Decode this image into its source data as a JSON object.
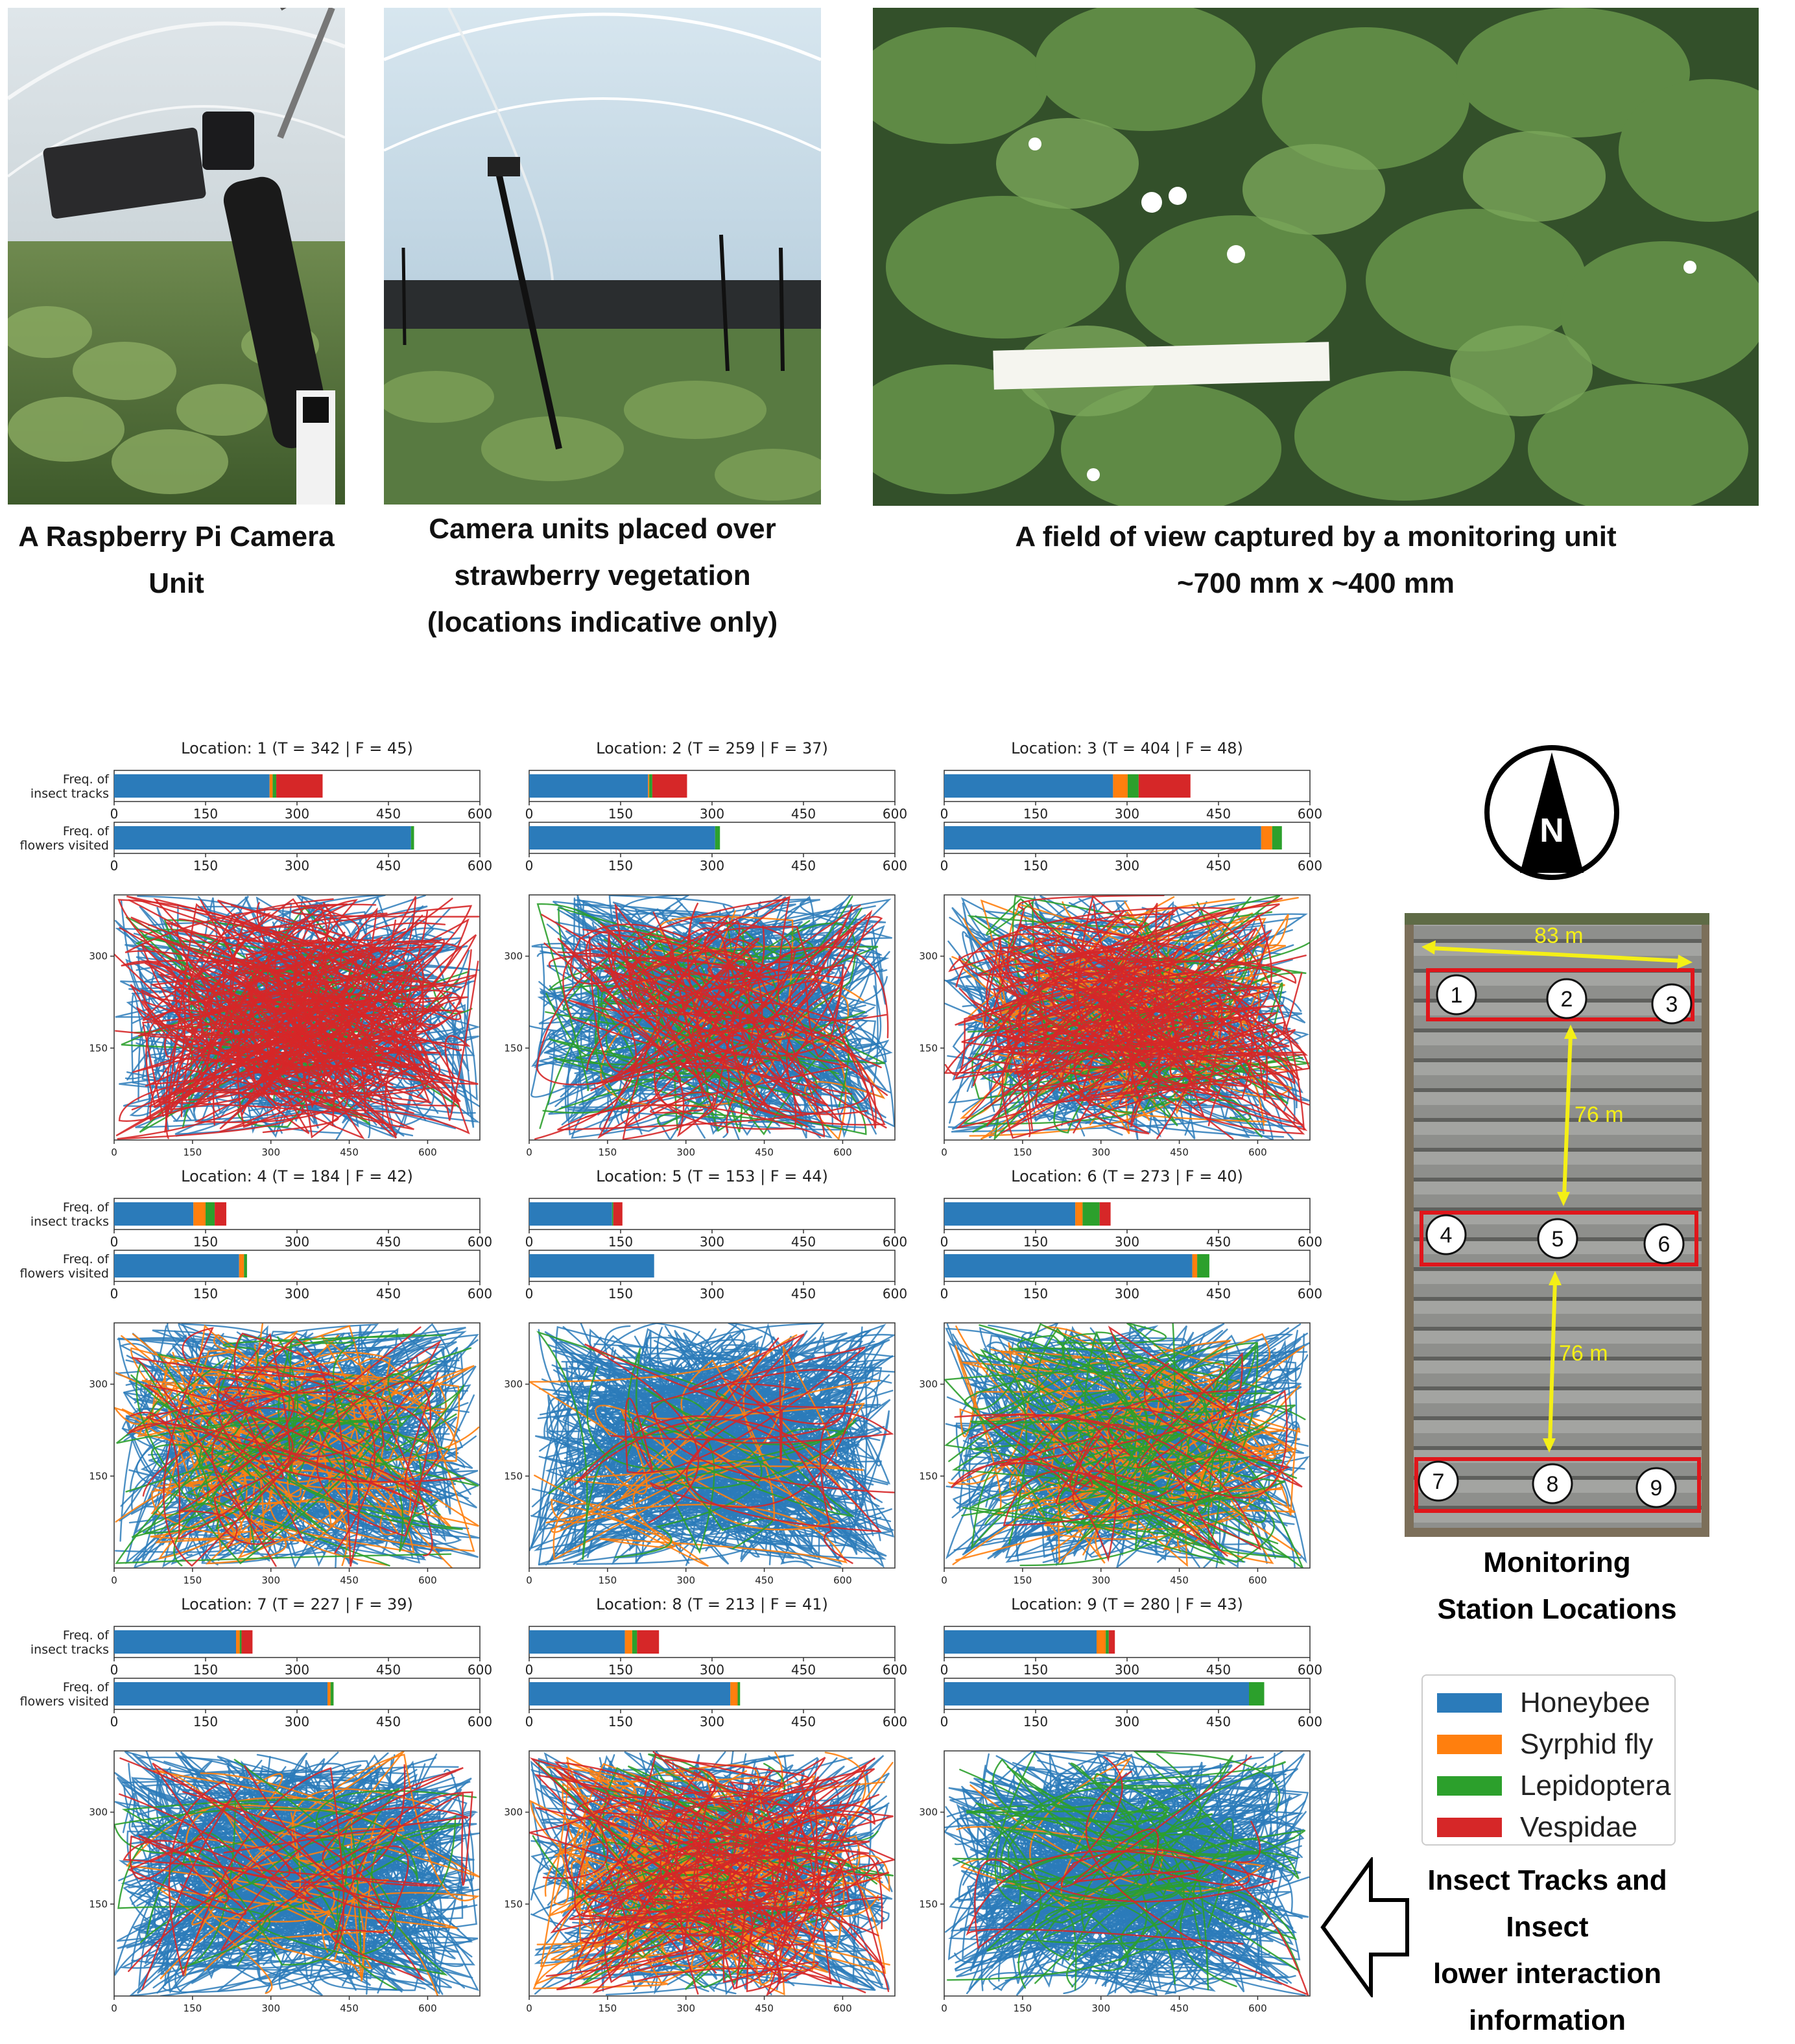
{
  "photos": [
    {
      "caption_lines": [
        "A Raspberry Pi Camera",
        "Unit"
      ]
    },
    {
      "caption_lines": [
        "Camera units placed over",
        "strawberry vegetation",
        "(locations indicative only)"
      ]
    },
    {
      "caption_lines": [
        "A field of view captured by a monitoring unit",
        "~700 mm x ~400 mm"
      ]
    }
  ],
  "colors": {
    "honeybee": "#2b7bba",
    "syrphid": "#ff7f0e",
    "lepidoptera": "#2ca02c",
    "vespidae": "#d62728"
  },
  "legend": {
    "items": [
      {
        "label": "Honeybee",
        "color": "#2b7bba"
      },
      {
        "label": "Syrphid fly",
        "color": "#ff7f0e"
      },
      {
        "label": "Lepidoptera",
        "color": "#2ca02c"
      },
      {
        "label": "Vespidae",
        "color": "#d62728"
      }
    ]
  },
  "map": {
    "title_lines": [
      "Monitoring",
      "Station Locations"
    ],
    "dist_top": "83 m",
    "dist_mid1": "76 m",
    "dist_mid2": "76 m",
    "compass_letter": "N",
    "stations": [
      "1",
      "2",
      "3",
      "4",
      "5",
      "6",
      "7",
      "8",
      "9"
    ]
  },
  "tracks_label_lines": [
    "Insect Tracks and Insect",
    "lower interaction",
    "information"
  ],
  "chart_data": {
    "type": "bar",
    "row_labels": {
      "tracks": [
        "Freq. of",
        "insect tracks"
      ],
      "flowers": [
        "Freq. of",
        "flowers visited"
      ]
    },
    "bar_xlim": [
      0,
      600
    ],
    "bar_ticks": [
      0,
      150,
      300,
      450,
      600
    ],
    "track_xlim": [
      0,
      700
    ],
    "track_ylim": [
      0,
      400
    ],
    "track_xticks": [
      0,
      150,
      300,
      450,
      600
    ],
    "track_yticks": [
      150,
      300
    ],
    "series": [
      "Honeybee",
      "Syrphid fly",
      "Lepidoptera",
      "Vespidae"
    ],
    "locations": [
      {
        "title": "Location: 1 (T = 342 | F = 45)",
        "tracks": [
          255,
          5,
          6,
          76
        ],
        "flowers": [
          487,
          0,
          5,
          0
        ],
        "mix": [
          0.55,
          0.0,
          0.05,
          0.4
        ]
      },
      {
        "title": "Location: 2 (T = 259 | F = 37)",
        "tracks": [
          195,
          2,
          5,
          57
        ],
        "flowers": [
          305,
          0,
          8,
          0
        ],
        "mix": [
          0.72,
          0.02,
          0.08,
          0.18
        ]
      },
      {
        "title": "Location: 3 (T = 404 | F = 48)",
        "tracks": [
          277,
          24,
          18,
          85
        ],
        "flowers": [
          520,
          18,
          16,
          0
        ],
        "mix": [
          0.55,
          0.1,
          0.07,
          0.28
        ]
      },
      {
        "title": "Location: 4 (T = 184 | F = 42)",
        "tracks": [
          130,
          20,
          15,
          19
        ],
        "flowers": [
          205,
          8,
          5,
          0
        ],
        "mix": [
          0.72,
          0.14,
          0.08,
          0.06
        ]
      },
      {
        "title": "Location: 5 (T = 153 | F = 44)",
        "tracks": [
          136,
          0,
          2,
          15
        ],
        "flowers": [
          205,
          0,
          0,
          0
        ],
        "mix": [
          0.9,
          0.04,
          0.03,
          0.03
        ]
      },
      {
        "title": "Location: 6 (T = 273 | F = 40)",
        "tracks": [
          215,
          12,
          28,
          18
        ],
        "flowers": [
          407,
          8,
          20,
          0
        ],
        "mix": [
          0.72,
          0.12,
          0.12,
          0.04
        ]
      },
      {
        "title": "Location: 7 (T = 227 | F = 39)",
        "tracks": [
          200,
          6,
          3,
          18
        ],
        "flowers": [
          350,
          5,
          5,
          0
        ],
        "mix": [
          0.86,
          0.06,
          0.04,
          0.04
        ]
      },
      {
        "title": "Location: 8 (T = 213 | F = 41)",
        "tracks": [
          157,
          12,
          8,
          36
        ],
        "flowers": [
          330,
          12,
          4,
          0
        ],
        "mix": [
          0.6,
          0.15,
          0.05,
          0.2
        ]
      },
      {
        "title": "Location: 9 (T = 280 | F = 43)",
        "tracks": [
          250,
          15,
          5,
          10
        ],
        "flowers": [
          500,
          0,
          25,
          0
        ],
        "mix": [
          0.87,
          0.01,
          0.1,
          0.02
        ]
      }
    ]
  }
}
